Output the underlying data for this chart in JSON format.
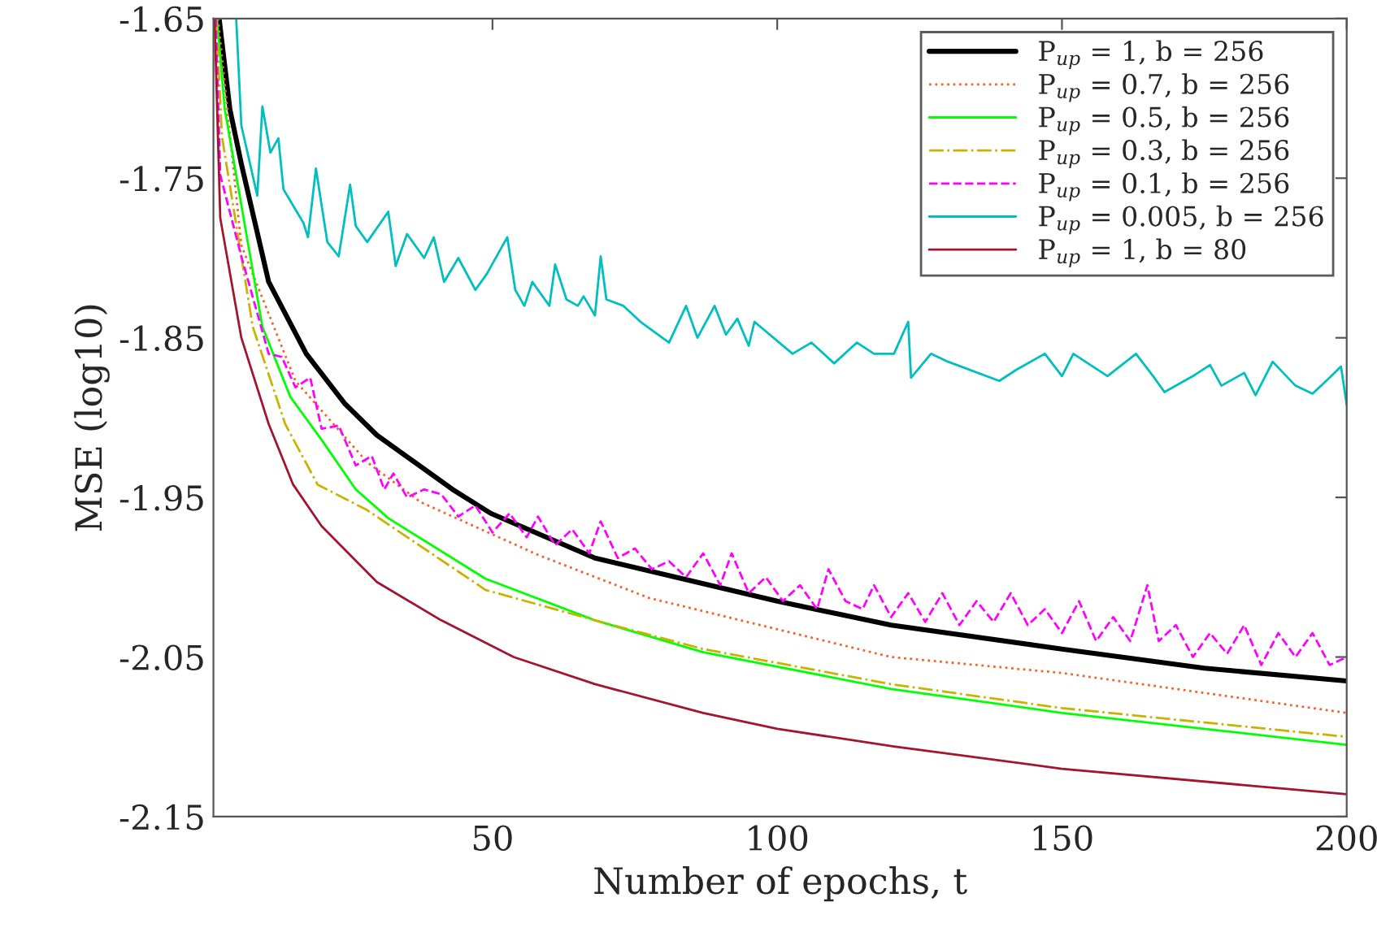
{
  "chart_data": {
    "type": "line",
    "xlabel": "Number of epochs, t",
    "ylabel": "MSE (log10)",
    "xlim": [
      1,
      200
    ],
    "xticks": [
      50,
      100,
      150,
      200
    ],
    "ylim": [
      -2.15,
      -1.65
    ],
    "yticks": [
      -2.15,
      -2.05,
      -1.95,
      -1.85,
      -1.75,
      -1.65
    ],
    "grid": false,
    "legend": "top right",
    "series": [
      {
        "name": "P$_{up}$ = 1, b = 256",
        "color": "#000000",
        "line_style": "solid",
        "x": [
          2,
          3.9,
          5.9,
          10.7,
          17.3,
          24,
          29.7,
          43,
          49.7,
          68,
          87,
          100,
          120,
          150,
          175,
          200
        ],
        "values": [
          -1.65,
          -1.707,
          -1.741,
          -1.815,
          -1.86,
          -1.891,
          -1.911,
          -1.945,
          -1.96,
          -1.988,
          -2.004,
          -2.015,
          -2.03,
          -2.045,
          -2.057,
          -2.065
        ]
      },
      {
        "name": "P$_{up}$ = 0.7, b = 256",
        "color": "#f4632c",
        "line_style": "dotted",
        "x": [
          1.8,
          5.9,
          15.4,
          28,
          37.4,
          58,
          77.5,
          120,
          150,
          200
        ],
        "values": [
          -1.65,
          -1.792,
          -1.877,
          -1.928,
          -1.953,
          -1.986,
          -2.013,
          -2.05,
          -2.06,
          -2.085
        ]
      },
      {
        "name": "P$_{up}$ = 0.5, b = 256",
        "color": "#00ff00",
        "line_style": "solid",
        "x": [
          1.6,
          3,
          9.6,
          14.5,
          20,
          26,
          31.7,
          48.8,
          68,
          87,
          120,
          150,
          200
        ],
        "values": [
          -1.65,
          -1.707,
          -1.843,
          -1.887,
          -1.914,
          -1.945,
          -1.963,
          -2.001,
          -2.027,
          -2.047,
          -2.07,
          -2.085,
          -2.105
        ]
      },
      {
        "name": "P$_{up}$ = 0.3, b = 256",
        "color": "#c8b400",
        "line_style": "dashdot",
        "x": [
          1.5,
          2.5,
          7.9,
          13.6,
          19.3,
          28,
          48.8,
          68,
          87,
          120,
          150,
          200
        ],
        "values": [
          -1.65,
          -1.724,
          -1.843,
          -1.904,
          -1.942,
          -1.958,
          -2.008,
          -2.027,
          -2.045,
          -2.067,
          -2.082,
          -2.1
        ]
      },
      {
        "name": "P$_{up}$ = 0.1, b = 256",
        "color": "#ff00ff",
        "line_style": "dashed",
        "x": [
          1.4,
          2.2,
          5.9,
          10.7,
          13,
          15.4,
          18,
          20,
          23,
          26,
          28.8,
          31,
          32.6,
          35,
          38,
          41,
          44,
          47,
          50,
          53,
          56,
          58,
          61,
          64,
          67,
          69,
          72,
          75,
          78,
          81,
          84,
          87,
          90,
          92,
          95,
          98,
          101,
          104,
          107,
          109,
          112,
          115,
          117,
          120,
          123,
          126,
          129,
          132,
          135,
          138,
          141,
          144,
          147,
          150,
          153,
          156,
          159,
          162,
          165,
          167,
          170,
          173,
          176,
          179,
          182,
          185,
          188,
          191,
          194,
          197,
          200
        ],
        "values": [
          -1.65,
          -1.748,
          -1.799,
          -1.86,
          -1.862,
          -1.881,
          -1.875,
          -1.907,
          -1.905,
          -1.93,
          -1.924,
          -1.945,
          -1.935,
          -1.95,
          -1.945,
          -1.948,
          -1.962,
          -1.955,
          -1.972,
          -1.96,
          -1.975,
          -1.962,
          -1.98,
          -1.97,
          -1.985,
          -1.965,
          -1.988,
          -1.982,
          -1.995,
          -1.99,
          -2.0,
          -1.985,
          -2.005,
          -1.985,
          -2.01,
          -2.0,
          -2.015,
          -2.005,
          -2.02,
          -1.995,
          -2.015,
          -2.02,
          -2.005,
          -2.025,
          -2.01,
          -2.028,
          -2.01,
          -2.03,
          -2.015,
          -2.028,
          -2.01,
          -2.03,
          -2.02,
          -2.035,
          -2.015,
          -2.04,
          -2.025,
          -2.04,
          -2.005,
          -2.04,
          -2.03,
          -2.05,
          -2.035,
          -2.048,
          -2.03,
          -2.055,
          -2.035,
          -2.05,
          -2.035,
          -2.055,
          -2.05
        ]
      },
      {
        "name": "P$_{up}$ = 0.005, b = 256",
        "color": "#00bfbf",
        "line_style": "solid",
        "x": [
          5,
          5.9,
          8.7,
          9.6,
          11,
          12.4,
          13.3,
          16.8,
          17.6,
          19,
          21,
          23,
          25,
          26,
          28,
          31.7,
          33,
          35,
          38,
          39.7,
          41.5,
          44,
          47,
          49,
          52.6,
          54,
          55.6,
          57,
          60,
          61,
          63,
          65,
          66,
          68,
          69,
          70,
          73,
          76,
          81,
          84,
          86,
          89,
          91,
          93,
          95,
          96,
          102.7,
          106,
          110,
          114,
          117,
          120.5,
          123,
          123.5,
          127,
          130,
          139,
          142,
          147,
          150,
          152,
          158,
          163,
          166,
          168,
          173,
          176,
          178,
          182,
          184,
          187,
          191,
          194,
          197,
          199,
          200
        ],
        "values": [
          -1.65,
          -1.717,
          -1.761,
          -1.705,
          -1.734,
          -1.725,
          -1.757,
          -1.778,
          -1.787,
          -1.744,
          -1.79,
          -1.799,
          -1.754,
          -1.78,
          -1.79,
          -1.771,
          -1.805,
          -1.785,
          -1.8,
          -1.787,
          -1.815,
          -1.8,
          -1.82,
          -1.81,
          -1.787,
          -1.82,
          -1.83,
          -1.815,
          -1.83,
          -1.804,
          -1.826,
          -1.83,
          -1.824,
          -1.836,
          -1.799,
          -1.826,
          -1.83,
          -1.84,
          -1.853,
          -1.83,
          -1.85,
          -1.83,
          -1.848,
          -1.838,
          -1.855,
          -1.84,
          -1.86,
          -1.853,
          -1.866,
          -1.853,
          -1.86,
          -1.86,
          -1.84,
          -1.875,
          -1.86,
          -1.865,
          -1.877,
          -1.87,
          -1.86,
          -1.874,
          -1.86,
          -1.874,
          -1.86,
          -1.874,
          -1.884,
          -1.874,
          -1.867,
          -1.88,
          -1.872,
          -1.886,
          -1.865,
          -1.88,
          -1.885,
          -1.875,
          -1.868,
          -1.892
        ]
      },
      {
        "name": "P$_{up}$ = 1, b = 80",
        "color": "#a2142f",
        "line_style": "solid",
        "x": [
          1.2,
          2.2,
          5.9,
          10.7,
          15,
          20,
          29.7,
          41,
          53.7,
          68,
          87,
          100,
          120.5,
          150,
          200
        ],
        "values": [
          -1.65,
          -1.775,
          -1.85,
          -1.904,
          -1.942,
          -1.968,
          -2.003,
          -2.027,
          -2.05,
          -2.067,
          -2.085,
          -2.095,
          -2.106,
          -2.12,
          -2.136
        ]
      }
    ]
  }
}
